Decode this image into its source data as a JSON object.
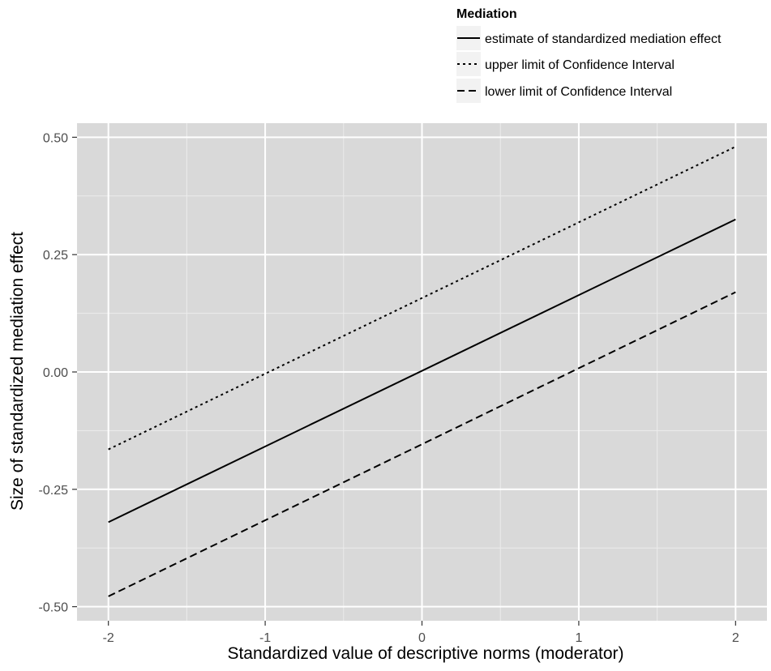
{
  "chart_data": {
    "type": "line",
    "title": "",
    "xlabel": "Standardized value of descriptive norms (moderator)",
    "ylabel": "Size of standardized mediation effect",
    "x": [
      -2,
      2
    ],
    "xlim": [
      -2.2,
      2.2
    ],
    "ylim": [
      -0.53,
      0.53
    ],
    "xticks": [
      -2,
      -1,
      0,
      1,
      2
    ],
    "xtick_labels": [
      "-2",
      "-1",
      "0",
      "1",
      "2"
    ],
    "yticks": [
      -0.5,
      -0.25,
      0,
      0.25,
      0.5
    ],
    "ytick_labels": [
      "-0.50",
      "-0.25",
      "0.00",
      "0.25",
      "0.50"
    ],
    "grid": true,
    "legend": {
      "title": "Mediation",
      "placement": "top-right"
    },
    "series": [
      {
        "name": "estimate of standardized mediation effect",
        "dash": "solid",
        "values": [
          -0.32,
          0.325
        ]
      },
      {
        "name": "upper limit of Confidence Interval",
        "dash": "dotted",
        "values": [
          -0.165,
          0.48
        ]
      },
      {
        "name": "lower limit of Confidence Interval",
        "dash": "dashed",
        "values": [
          -0.478,
          0.17
        ]
      }
    ],
    "colors": {
      "panel_background": "#d9d9d9",
      "grid_major": "#ffffff",
      "grid_minor": "#ececec",
      "line": "#000000",
      "text": "#4d4d4d"
    }
  }
}
